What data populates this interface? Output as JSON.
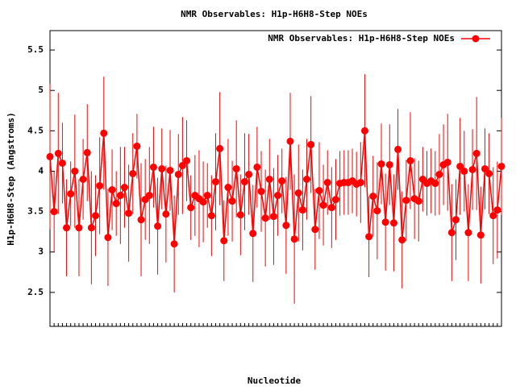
{
  "chart_data": {
    "type": "line",
    "title": "NMR Observables: H1p-H6H8-Step NOEs",
    "x_label": "Nucleotide",
    "y_label": "H1p-H6H8-Step (Angstroms)",
    "categories": [
      null,
      null,
      null,
      null,
      null,
      null,
      null,
      null,
      null,
      null,
      null,
      null,
      null,
      null,
      null,
      null,
      null,
      null,
      null,
      null,
      null,
      null,
      null,
      null,
      null,
      null,
      null,
      null,
      null,
      null,
      null,
      null,
      null,
      null,
      null,
      null,
      null,
      null,
      null,
      null,
      null,
      null,
      null,
      null,
      null,
      null,
      null,
      null,
      null,
      null,
      null,
      null,
      null,
      null,
      null,
      null,
      null,
      null,
      null,
      null,
      null,
      null,
      null,
      null,
      null,
      null,
      null,
      null,
      null,
      null,
      null,
      null,
      null,
      null,
      null,
      null,
      null,
      null,
      null,
      null,
      null,
      null,
      null,
      null,
      null,
      null,
      null,
      null,
      null,
      null,
      null,
      null,
      null,
      null,
      null,
      null,
      null,
      null,
      null,
      null,
      null,
      null,
      null,
      null,
      null,
      null,
      null,
      null,
      null,
      null
    ],
    "series": [
      {
        "name": "NMR Observables: H1p-H6H8-Step NOEs",
        "color": "#ff0000",
        "values": [
          4.18,
          3.5,
          4.22,
          4.1,
          3.3,
          3.72,
          4.0,
          3.3,
          3.9,
          4.23,
          3.3,
          3.45,
          3.82,
          4.47,
          3.18,
          3.77,
          3.6,
          3.7,
          3.8,
          3.48,
          3.97,
          4.31,
          3.4,
          3.65,
          3.7,
          4.05,
          3.32,
          4.03,
          3.47,
          4.01,
          3.1,
          3.96,
          4.07,
          4.13,
          3.55,
          3.7,
          3.66,
          3.62,
          3.7,
          3.45,
          3.87,
          4.28,
          3.14,
          3.8,
          3.63,
          4.03,
          3.46,
          3.87,
          3.96,
          3.23,
          4.05,
          3.75,
          3.42,
          3.9,
          3.44,
          3.7,
          3.88,
          3.33,
          4.37,
          3.16,
          3.73,
          3.52,
          3.9,
          4.33,
          3.28,
          3.76,
          3.58,
          3.86,
          3.55,
          3.65,
          3.85,
          3.86,
          3.86,
          3.88,
          3.84,
          3.86,
          4.5,
          3.19,
          3.69,
          3.51,
          4.09,
          3.37,
          4.08,
          3.36,
          4.27,
          3.15,
          3.64,
          4.13,
          3.66,
          3.63,
          3.9,
          3.85,
          3.88,
          3.85,
          3.96,
          4.08,
          4.11,
          3.24,
          3.4,
          4.06,
          4.0,
          3.24,
          4.02,
          4.22,
          3.21,
          4.03,
          3.97,
          3.45,
          3.52,
          4.06
        ],
        "errors": [
          0.9,
          0.5,
          0.75,
          0.5,
          0.6,
          0.4,
          0.7,
          0.6,
          0.5,
          0.6,
          0.7,
          0.5,
          0.6,
          0.7,
          0.6,
          0.5,
          0.4,
          0.6,
          0.5,
          0.6,
          0.5,
          0.4,
          0.7,
          0.5,
          0.6,
          0.5,
          0.6,
          0.5,
          0.6,
          0.5,
          0.6,
          0.5,
          0.6,
          0.5,
          0.4,
          0.5,
          0.6,
          0.5,
          0.4,
          0.5,
          0.6,
          0.7,
          0.5,
          0.6,
          0.5,
          0.6,
          0.5,
          0.6,
          0.5,
          0.6,
          0.5,
          0.5,
          0.6,
          0.5,
          0.6,
          0.5,
          0.4,
          0.6,
          0.6,
          0.8,
          0.6,
          0.5,
          0.5,
          0.6,
          0.5,
          0.6,
          0.5,
          0.4,
          0.5,
          0.5,
          0.4,
          0.4,
          0.4,
          0.4,
          0.4,
          0.5,
          0.7,
          0.5,
          0.5,
          0.6,
          0.5,
          0.6,
          0.5,
          0.6,
          0.5,
          0.6,
          0.5,
          0.6,
          0.5,
          0.5,
          0.4,
          0.4,
          0.4,
          0.4,
          0.5,
          0.5,
          0.6,
          0.6,
          0.5,
          0.6,
          0.5,
          0.6,
          0.5,
          0.7,
          0.6,
          0.5,
          0.5,
          0.6,
          0.6,
          0.6
        ]
      }
    ],
    "ylim": [
      2.08,
      5.74
    ],
    "yticks": [
      2.5,
      3,
      3.5,
      4,
      4.5,
      5,
      5.5
    ],
    "legend": "upper right"
  }
}
